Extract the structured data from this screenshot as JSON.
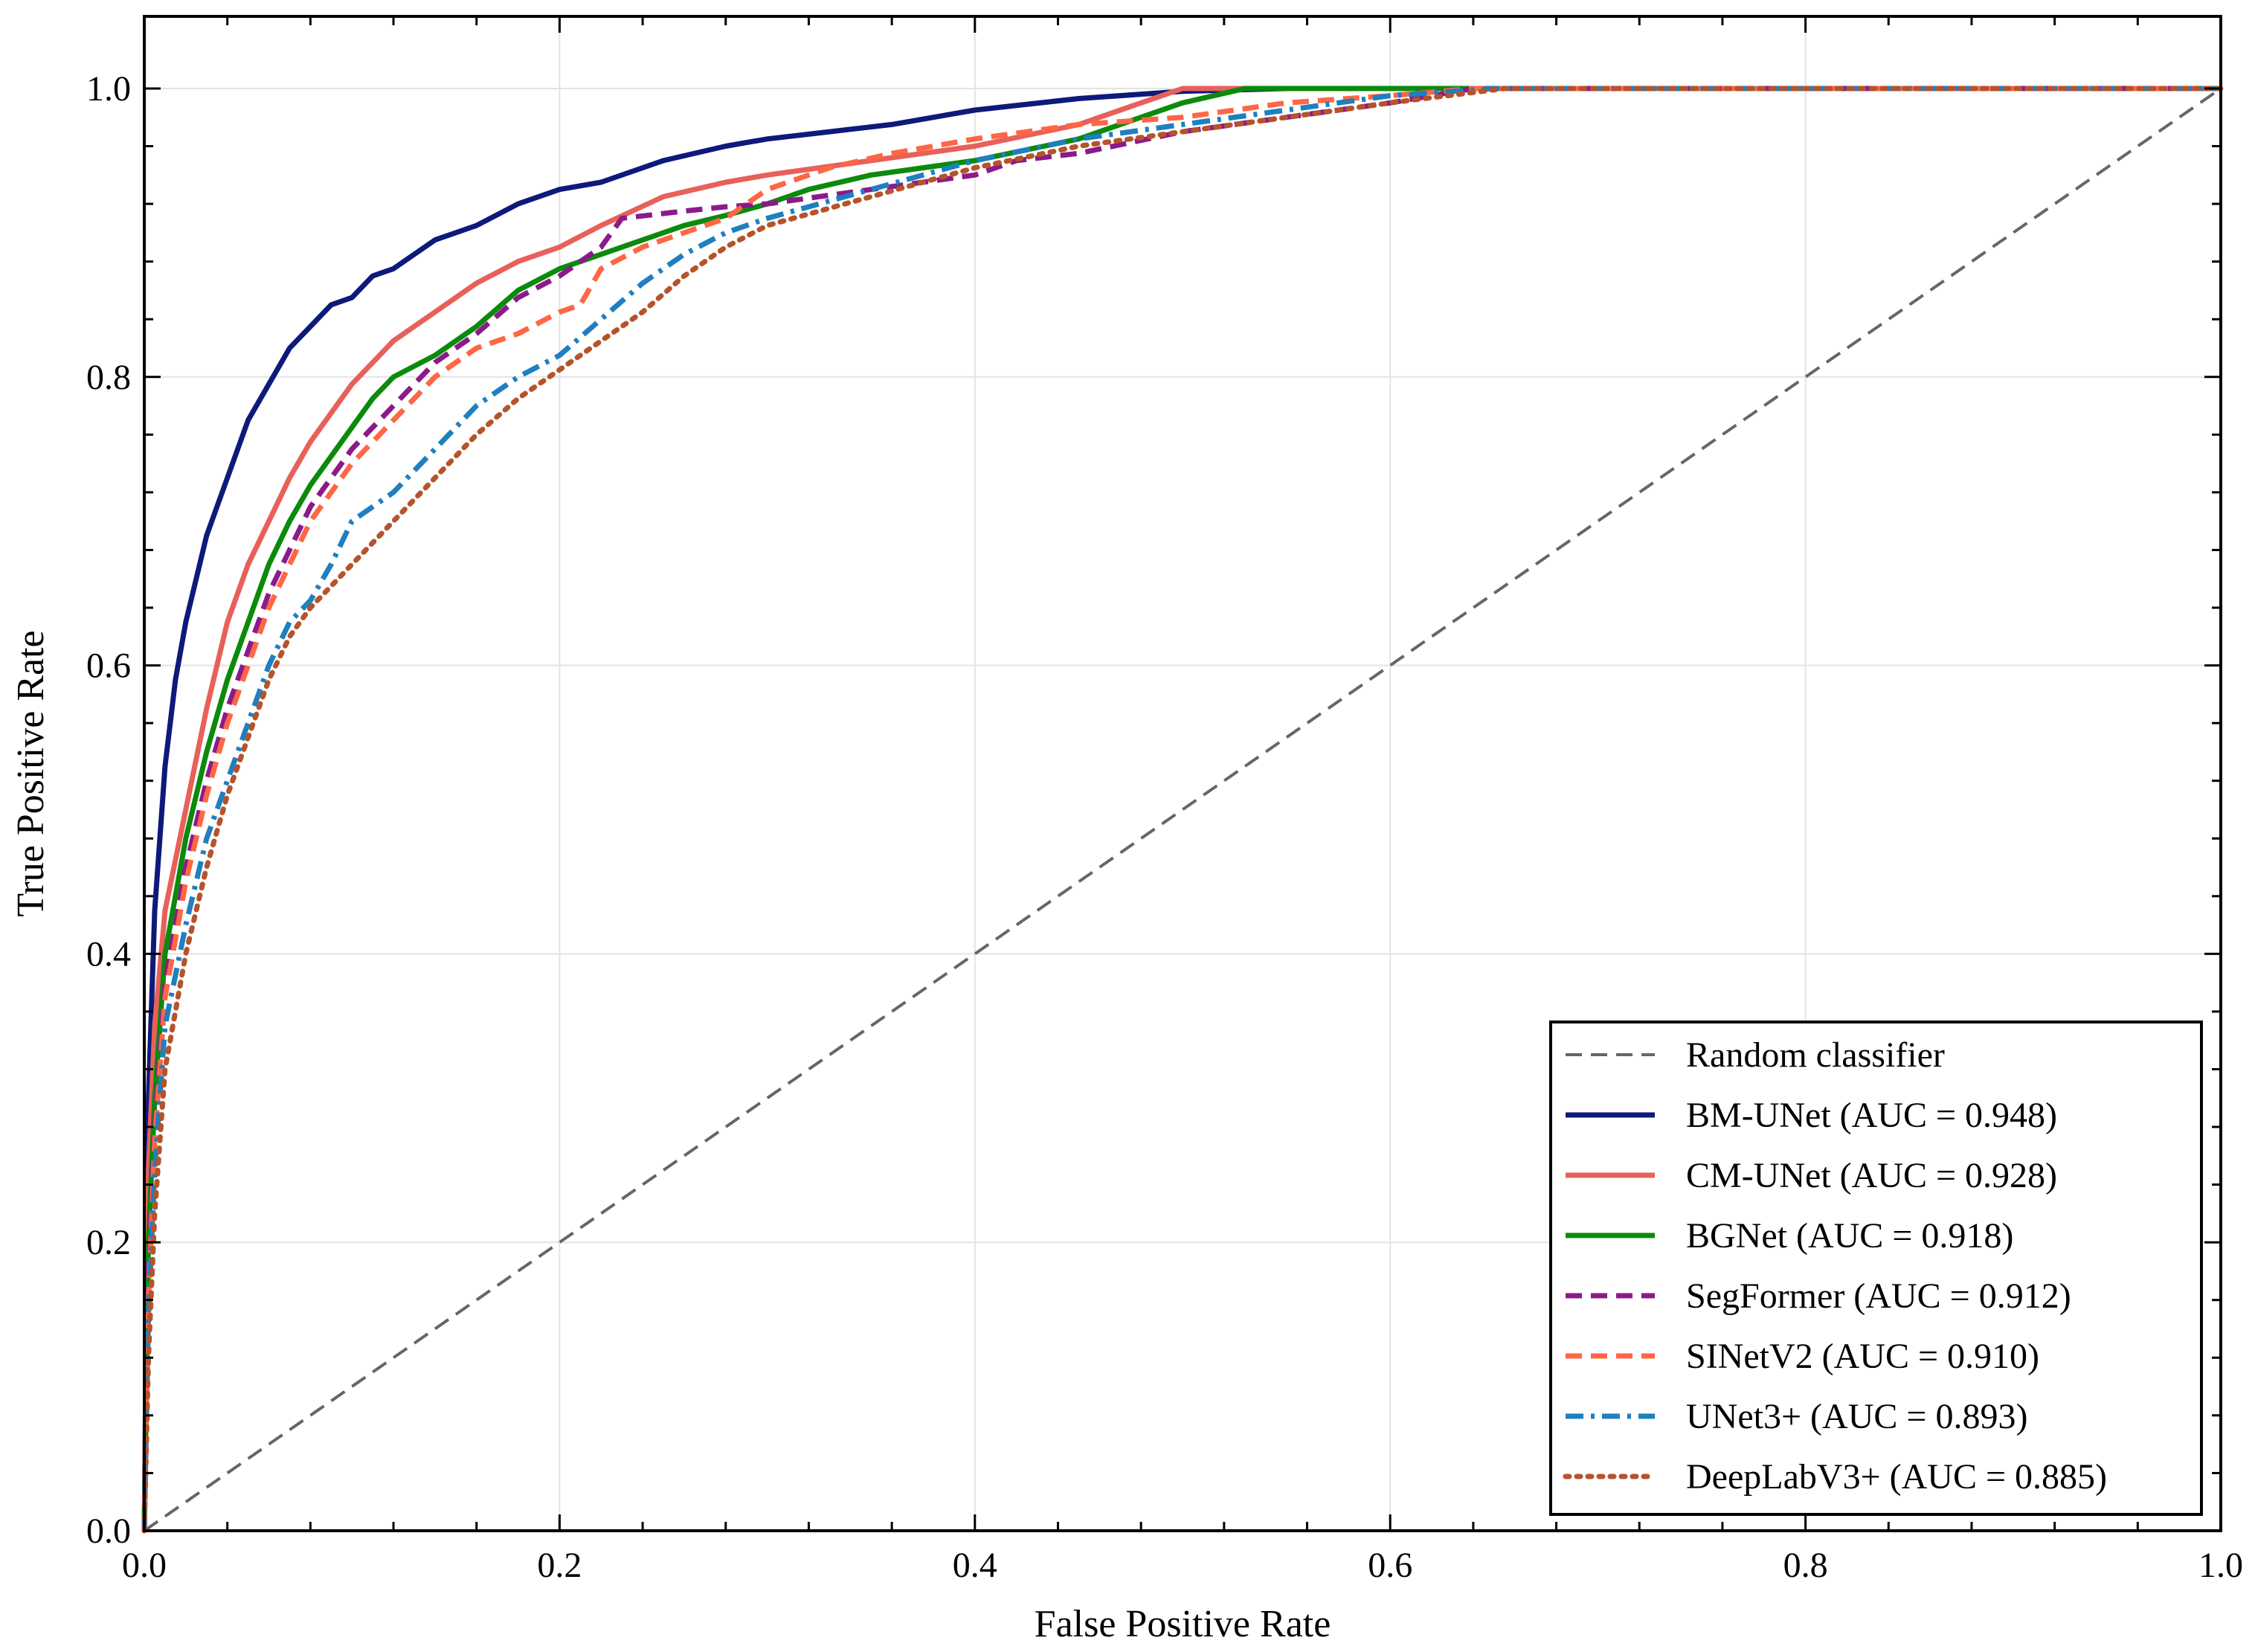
{
  "chart_data": {
    "type": "line",
    "xlabel": "False Positive Rate",
    "ylabel": "True Positive Rate",
    "xlim": [
      0.0,
      1.0
    ],
    "ylim": [
      0.0,
      1.05
    ],
    "xticks": [
      "0.0",
      "0.2",
      "0.4",
      "0.6",
      "0.8",
      "1.0"
    ],
    "yticks": [
      "0.0",
      "0.2",
      "0.4",
      "0.6",
      "0.8",
      "1.0"
    ],
    "grid": true,
    "legend_position": "lower-right",
    "series": [
      {
        "name": "Random classifier",
        "color": "#666666",
        "style": "dashed",
        "x": [
          0,
          1
        ],
        "y": [
          0,
          1
        ]
      },
      {
        "name": "BM-UNet (AUC = 0.948)",
        "color": "#0d1a7a",
        "style": "solid",
        "x": [
          0,
          0.002,
          0.005,
          0.01,
          0.015,
          0.02,
          0.03,
          0.04,
          0.05,
          0.06,
          0.07,
          0.08,
          0.09,
          0.1,
          0.11,
          0.12,
          0.14,
          0.16,
          0.18,
          0.2,
          0.22,
          0.25,
          0.28,
          0.3,
          0.33,
          0.36,
          0.4,
          0.45,
          0.5,
          0.55,
          1.0
        ],
        "y": [
          0,
          0.3,
          0.43,
          0.53,
          0.59,
          0.63,
          0.69,
          0.73,
          0.77,
          0.795,
          0.82,
          0.835,
          0.85,
          0.855,
          0.87,
          0.875,
          0.895,
          0.905,
          0.92,
          0.93,
          0.935,
          0.95,
          0.96,
          0.965,
          0.97,
          0.975,
          0.985,
          0.993,
          0.998,
          1.0,
          1.0
        ]
      },
      {
        "name": "CM-UNet (AUC = 0.928)",
        "color": "#e8605a",
        "style": "solid",
        "x": [
          0,
          0.002,
          0.005,
          0.01,
          0.02,
          0.03,
          0.04,
          0.05,
          0.06,
          0.07,
          0.08,
          0.09,
          0.1,
          0.12,
          0.14,
          0.16,
          0.18,
          0.2,
          0.22,
          0.25,
          0.28,
          0.3,
          0.35,
          0.4,
          0.45,
          0.48,
          0.5,
          0.55,
          1.0
        ],
        "y": [
          0,
          0.25,
          0.35,
          0.43,
          0.5,
          0.57,
          0.63,
          0.67,
          0.7,
          0.73,
          0.755,
          0.775,
          0.795,
          0.825,
          0.845,
          0.865,
          0.88,
          0.89,
          0.905,
          0.925,
          0.935,
          0.94,
          0.95,
          0.96,
          0.975,
          0.99,
          1.0,
          1.0,
          1.0
        ]
      },
      {
        "name": "BGNet (AUC = 0.918)",
        "color": "#0b8a0b",
        "style": "solid",
        "x": [
          0,
          0.002,
          0.005,
          0.01,
          0.02,
          0.03,
          0.04,
          0.05,
          0.06,
          0.07,
          0.08,
          0.09,
          0.1,
          0.11,
          0.12,
          0.14,
          0.16,
          0.18,
          0.2,
          0.22,
          0.24,
          0.26,
          0.28,
          0.3,
          0.32,
          0.35,
          0.4,
          0.45,
          0.5,
          0.53,
          0.6,
          1.0
        ],
        "y": [
          0,
          0.2,
          0.3,
          0.4,
          0.48,
          0.54,
          0.59,
          0.63,
          0.67,
          0.7,
          0.725,
          0.745,
          0.765,
          0.785,
          0.8,
          0.815,
          0.835,
          0.86,
          0.875,
          0.885,
          0.895,
          0.905,
          0.912,
          0.92,
          0.93,
          0.94,
          0.95,
          0.965,
          0.99,
          1.0,
          1.0,
          1.0
        ]
      },
      {
        "name": "SegFormer (AUC = 0.912)",
        "color": "#8b1a8b",
        "style": "dashed",
        "x": [
          0,
          0.002,
          0.005,
          0.01,
          0.02,
          0.03,
          0.04,
          0.05,
          0.06,
          0.07,
          0.08,
          0.09,
          0.1,
          0.11,
          0.12,
          0.14,
          0.16,
          0.18,
          0.2,
          0.22,
          0.23,
          0.26,
          0.28,
          0.3,
          0.35,
          0.4,
          0.42,
          0.45,
          0.5,
          0.55,
          0.6,
          0.64,
          1.0
        ],
        "y": [
          0,
          0.18,
          0.28,
          0.38,
          0.46,
          0.52,
          0.57,
          0.61,
          0.65,
          0.68,
          0.71,
          0.73,
          0.75,
          0.765,
          0.78,
          0.81,
          0.83,
          0.855,
          0.87,
          0.89,
          0.91,
          0.915,
          0.918,
          0.92,
          0.93,
          0.94,
          0.95,
          0.955,
          0.97,
          0.98,
          0.99,
          1.0,
          1.0
        ]
      },
      {
        "name": "SINetV2 (AUC = 0.910)",
        "color": "#ff6644",
        "style": "dashed",
        "x": [
          0,
          0.002,
          0.005,
          0.01,
          0.02,
          0.03,
          0.04,
          0.05,
          0.06,
          0.07,
          0.08,
          0.09,
          0.1,
          0.11,
          0.12,
          0.14,
          0.16,
          0.18,
          0.2,
          0.21,
          0.22,
          0.24,
          0.26,
          0.28,
          0.3,
          0.33,
          0.36,
          0.4,
          0.45,
          0.5,
          0.55,
          0.6,
          0.64,
          1.0
        ],
        "y": [
          0,
          0.16,
          0.27,
          0.37,
          0.45,
          0.51,
          0.56,
          0.6,
          0.64,
          0.67,
          0.7,
          0.72,
          0.74,
          0.755,
          0.77,
          0.8,
          0.82,
          0.83,
          0.845,
          0.85,
          0.875,
          0.89,
          0.9,
          0.91,
          0.93,
          0.945,
          0.955,
          0.965,
          0.975,
          0.98,
          0.99,
          0.995,
          1.0,
          1.0
        ]
      },
      {
        "name": "UNet3+ (AUC = 0.893)",
        "color": "#1f7fbf",
        "style": "dashdot",
        "x": [
          0,
          0.002,
          0.005,
          0.01,
          0.02,
          0.03,
          0.04,
          0.05,
          0.06,
          0.07,
          0.08,
          0.09,
          0.1,
          0.12,
          0.14,
          0.16,
          0.18,
          0.2,
          0.22,
          0.24,
          0.26,
          0.28,
          0.3,
          0.35,
          0.4,
          0.45,
          0.5,
          0.55,
          0.6,
          0.65,
          1.0
        ],
        "y": [
          0,
          0.15,
          0.25,
          0.35,
          0.42,
          0.48,
          0.52,
          0.56,
          0.6,
          0.63,
          0.645,
          0.67,
          0.7,
          0.72,
          0.75,
          0.78,
          0.8,
          0.815,
          0.84,
          0.865,
          0.885,
          0.9,
          0.91,
          0.93,
          0.95,
          0.965,
          0.975,
          0.985,
          0.995,
          1.0,
          1.0
        ]
      },
      {
        "name": "DeepLabV3+ (AUC = 0.885)",
        "color": "#b5532a",
        "style": "dotted",
        "x": [
          0,
          0.002,
          0.005,
          0.01,
          0.02,
          0.03,
          0.04,
          0.05,
          0.06,
          0.07,
          0.08,
          0.09,
          0.1,
          0.12,
          0.14,
          0.16,
          0.18,
          0.2,
          0.22,
          0.24,
          0.26,
          0.28,
          0.3,
          0.35,
          0.4,
          0.45,
          0.5,
          0.55,
          0.6,
          0.655,
          1.0
        ],
        "y": [
          0,
          0.12,
          0.22,
          0.32,
          0.4,
          0.46,
          0.51,
          0.55,
          0.59,
          0.62,
          0.64,
          0.655,
          0.67,
          0.7,
          0.73,
          0.76,
          0.785,
          0.805,
          0.825,
          0.845,
          0.87,
          0.89,
          0.905,
          0.925,
          0.945,
          0.96,
          0.97,
          0.98,
          0.99,
          1.0,
          1.0
        ]
      }
    ]
  }
}
